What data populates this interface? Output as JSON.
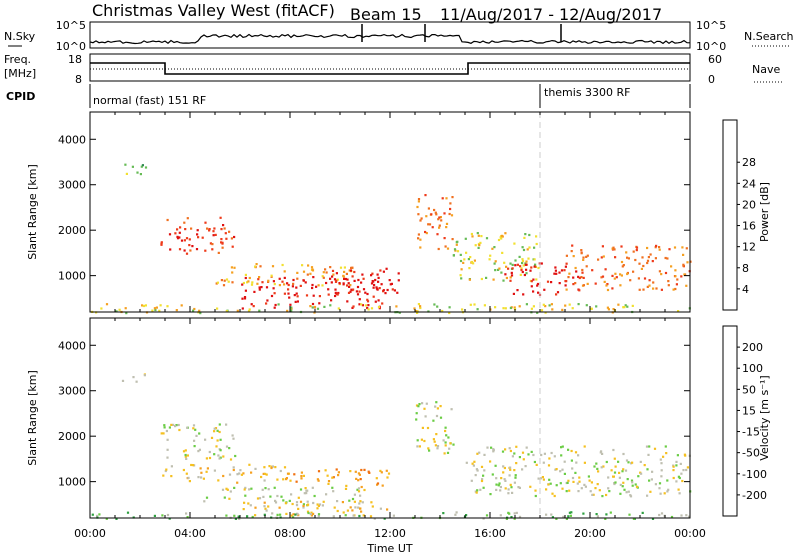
{
  "header": {
    "site": "Christmas Valley West (fitACF)",
    "beam": "Beam 15",
    "date_range": "11/Aug/2017 - 12/Aug/2017"
  },
  "strip_labels": {
    "nsky": "N.Sky",
    "nsky_ticks": [
      "10^5",
      "10^0"
    ],
    "nsearch": "N.Search",
    "nsearch_ticks": [
      "10^5",
      "10^0"
    ],
    "freq": "Freq.",
    "freq_unit": "[MHz]",
    "freq_ticks": [
      "18",
      "8"
    ],
    "nave": "Nave",
    "nave_ticks": [
      "60",
      "0"
    ],
    "cpid": "CPID",
    "cpid_modes": [
      {
        "label": "normal (fast) 151 RF",
        "start_hour": 0
      },
      {
        "label": "themis 3300 RF",
        "start_hour": 18.0
      }
    ]
  },
  "chart_data": [
    {
      "type": "heatmap",
      "name": "power",
      "ylabel": "Slant Range [km]",
      "yticks": [
        1000,
        2000,
        3000,
        4000
      ],
      "ylim": [
        200,
        4600
      ],
      "xlim": [
        0,
        24
      ],
      "colorbar": {
        "label": "Power [dB]",
        "ticks": [
          "4",
          "8",
          "12",
          "16",
          "20",
          "24",
          "28"
        ],
        "colors": [
          "#1030e0",
          "#2050a0",
          "#2e8a50",
          "#66bb55",
          "#f2e030",
          "#f5a020",
          "#f07020",
          "#ee3a1a",
          "#e01010"
        ]
      },
      "features": [
        {
          "x": [
            1.2,
            2.2
          ],
          "y": [
            3200,
            3500
          ],
          "level": 3
        },
        {
          "x": [
            2.8,
            5.8
          ],
          "y": [
            1500,
            2300
          ],
          "level": 7
        },
        {
          "x": [
            5.0,
            10.5
          ],
          "y": [
            800,
            1300
          ],
          "level": 5
        },
        {
          "x": [
            6.0,
            12.0
          ],
          "y": [
            300,
            1000
          ],
          "level": 8
        },
        {
          "x": [
            9.5,
            12.5
          ],
          "y": [
            600,
            1200
          ],
          "level": 8
        },
        {
          "x": [
            13.0,
            14.5
          ],
          "y": [
            1600,
            2800
          ],
          "level": 6
        },
        {
          "x": [
            14.5,
            18.0
          ],
          "y": [
            900,
            2000
          ],
          "level": 4
        },
        {
          "x": [
            16.5,
            19.5
          ],
          "y": [
            600,
            1300
          ],
          "level": 8
        },
        {
          "x": [
            19.0,
            24.0
          ],
          "y": [
            700,
            1700
          ],
          "level": 6
        },
        {
          "x": [
            0.0,
            24.0
          ],
          "y": [
            200,
            400
          ],
          "level": 4
        }
      ]
    },
    {
      "type": "heatmap",
      "name": "velocity",
      "ylabel": "Slant Range [km]",
      "yticks": [
        1000,
        2000,
        3000,
        4000
      ],
      "ylim": [
        200,
        4600
      ],
      "xlim": [
        0,
        24
      ],
      "xlabel": "Time UT",
      "xticks": [
        "00:00",
        "04:00",
        "08:00",
        "12:00",
        "16:00",
        "20:00",
        "00:00"
      ],
      "colorbar": {
        "label": "Velocity [m s⁻¹]",
        "ticks": [
          "200",
          "100",
          "50",
          "15",
          "-15",
          "-50",
          "-100",
          "-200"
        ],
        "colors": [
          "#1030c0",
          "#1a8050",
          "#2ea040",
          "#6acc44",
          "#bfbfb0",
          "#f5c020",
          "#f5a020",
          "#f07010",
          "#e01010"
        ]
      },
      "features": [
        {
          "x": [
            1.2,
            2.2
          ],
          "y": [
            3200,
            3400
          ],
          "level": 4
        },
        {
          "x": [
            2.8,
            5.8
          ],
          "y": [
            1500,
            2300
          ],
          "level": 4
        },
        {
          "x": [
            2.5,
            8.0
          ],
          "y": [
            1000,
            1400
          ],
          "level": 5
        },
        {
          "x": [
            8.0,
            12.0
          ],
          "y": [
            900,
            1300
          ],
          "level": 6
        },
        {
          "x": [
            4.5,
            11.0
          ],
          "y": [
            500,
            900
          ],
          "level": 4
        },
        {
          "x": [
            6.0,
            12.0
          ],
          "y": [
            250,
            600
          ],
          "level": 5
        },
        {
          "x": [
            13.0,
            14.5
          ],
          "y": [
            1600,
            2800
          ],
          "level": 4
        },
        {
          "x": [
            15.0,
            24.0
          ],
          "y": [
            700,
            1800
          ],
          "level": 4
        },
        {
          "x": [
            0.0,
            24.0
          ],
          "y": [
            200,
            350
          ],
          "level": 3
        }
      ]
    }
  ]
}
